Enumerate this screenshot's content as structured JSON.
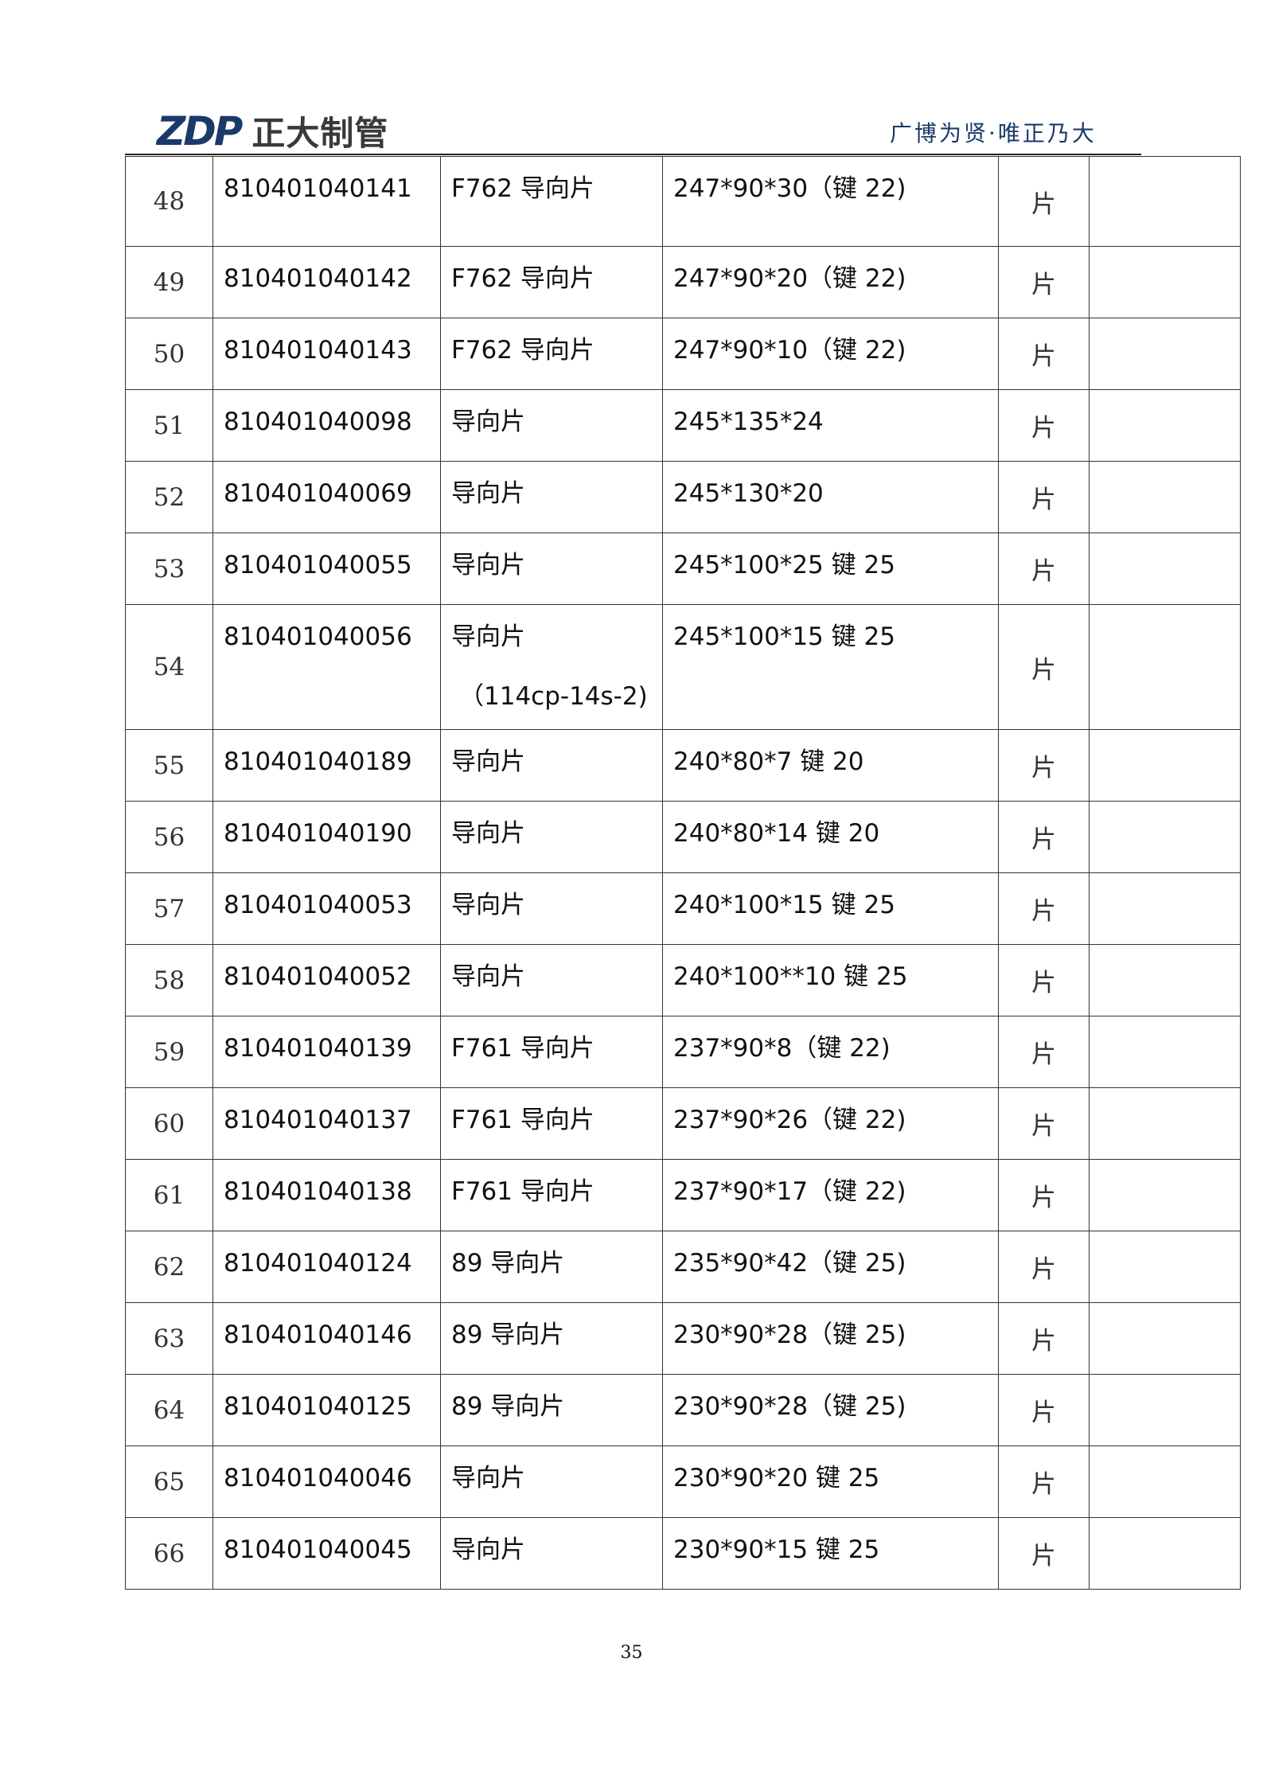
{
  "header": {
    "logo_mark": "ZDP",
    "logo_name": "正大制管",
    "slogan": "广博为贤·唯正乃大",
    "accent": "#1a3a6b"
  },
  "rows": [
    {
      "no": "48",
      "code": "810401040141",
      "name": "F762 导向片",
      "spec": "247*90*30（键 22)",
      "unit": "片",
      "note": ""
    },
    {
      "no": "49",
      "code": "810401040142",
      "name": "F762 导向片",
      "spec": "247*90*20（键 22)",
      "unit": "片",
      "note": ""
    },
    {
      "no": "50",
      "code": "810401040143",
      "name": "F762 导向片",
      "spec": "247*90*10（键 22)",
      "unit": "片",
      "note": ""
    },
    {
      "no": "51",
      "code": "810401040098",
      "name": "导向片",
      "spec": "245*135*24",
      "unit": "片",
      "note": ""
    },
    {
      "no": "52",
      "code": "810401040069",
      "name": "导向片",
      "spec": "245*130*20",
      "unit": "片",
      "note": ""
    },
    {
      "no": "53",
      "code": "810401040055",
      "name": "导向片",
      "spec": "245*100*25 键 25",
      "unit": "片",
      "note": ""
    },
    {
      "no": "54",
      "code": "810401040056",
      "name": "导向片",
      "name2": "（114cp-14s-2)",
      "spec": "245*100*15 键 25",
      "unit": "片",
      "note": ""
    },
    {
      "no": "55",
      "code": "810401040189",
      "name": "导向片",
      "spec": "240*80*7 键 20",
      "unit": "片",
      "note": ""
    },
    {
      "no": "56",
      "code": "810401040190",
      "name": "导向片",
      "spec": "240*80*14 键 20",
      "unit": "片",
      "note": ""
    },
    {
      "no": "57",
      "code": "810401040053",
      "name": "导向片",
      "spec": "240*100*15 键 25",
      "unit": "片",
      "note": ""
    },
    {
      "no": "58",
      "code": "810401040052",
      "name": "导向片",
      "spec": "240*100**10 键 25",
      "unit": "片",
      "note": ""
    },
    {
      "no": "59",
      "code": "810401040139",
      "name": "F761 导向片",
      "spec": "237*90*8（键 22)",
      "unit": "片",
      "note": ""
    },
    {
      "no": "60",
      "code": "810401040137",
      "name": "F761 导向片",
      "spec": "237*90*26（键 22)",
      "unit": "片",
      "note": ""
    },
    {
      "no": "61",
      "code": "810401040138",
      "name": "F761 导向片",
      "spec": "237*90*17（键 22)",
      "unit": "片",
      "note": ""
    },
    {
      "no": "62",
      "code": "810401040124",
      "name": "89 导向片",
      "spec": "235*90*42（键 25)",
      "unit": "片",
      "note": ""
    },
    {
      "no": "63",
      "code": "810401040146",
      "name": "89 导向片",
      "spec": "230*90*28（键 25)",
      "unit": "片",
      "note": ""
    },
    {
      "no": "64",
      "code": "810401040125",
      "name": "89 导向片",
      "spec": "230*90*28（键 25)",
      "unit": "片",
      "note": ""
    },
    {
      "no": "65",
      "code": "810401040046",
      "name": "导向片",
      "spec": "230*90*20 键 25",
      "unit": "片",
      "note": ""
    },
    {
      "no": "66",
      "code": "810401040045",
      "name": "导向片",
      "spec": "230*90*15 键 25",
      "unit": "片",
      "note": ""
    }
  ],
  "footer": {
    "page_number": "35"
  }
}
